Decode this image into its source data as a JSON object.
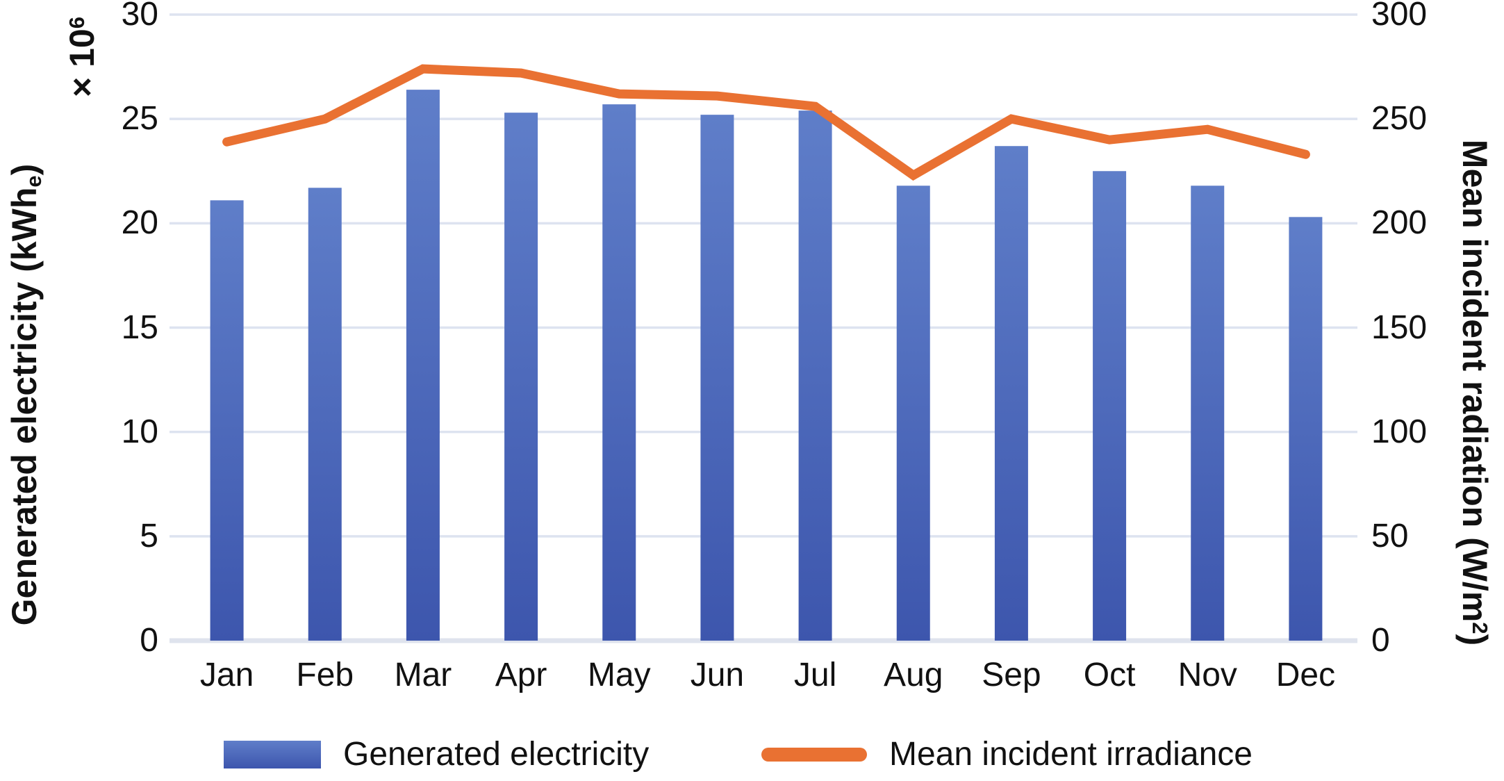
{
  "chart_data": {
    "type": "combo-bar-line",
    "categories": [
      "Jan",
      "Feb",
      "Mar",
      "Apr",
      "May",
      "Jun",
      "Jul",
      "Aug",
      "Sep",
      "Oct",
      "Nov",
      "Dec"
    ],
    "series": [
      {
        "name": "Generated electricity",
        "type": "bar",
        "axis": "left",
        "values": [
          21.1,
          21.7,
          26.4,
          25.3,
          25.7,
          25.2,
          25.4,
          21.8,
          23.7,
          22.5,
          21.8,
          20.3
        ]
      },
      {
        "name": "Mean incident irradiance",
        "type": "line",
        "axis": "right",
        "values": [
          239,
          250,
          274,
          272,
          262,
          261,
          256,
          223,
          250,
          240,
          245,
          233
        ]
      }
    ],
    "left_axis": {
      "range": [
        0,
        30
      ],
      "ticks": [
        30,
        25,
        20,
        15,
        10,
        5,
        0
      ],
      "title": {
        "pre": "Generated electricity (kWh",
        "sub": "e",
        "post": ")"
      },
      "multiplier": {
        "pre": "× 10",
        "sup": "6"
      }
    },
    "right_axis": {
      "range": [
        0,
        300
      ],
      "ticks": [
        300,
        250,
        200,
        150,
        100,
        50,
        0
      ],
      "title": {
        "pre": "Mean incident radiation (W/m",
        "sup": "2",
        "post": ")"
      }
    },
    "grid": true,
    "legend_position": "bottom"
  },
  "colors": {
    "bar_top": "#5f7ec9",
    "bar_bottom": "#3d56ad",
    "line": "#e97132",
    "gridline": "#dde3f0",
    "baseline": "#dfe3ed",
    "text": "#111111"
  }
}
